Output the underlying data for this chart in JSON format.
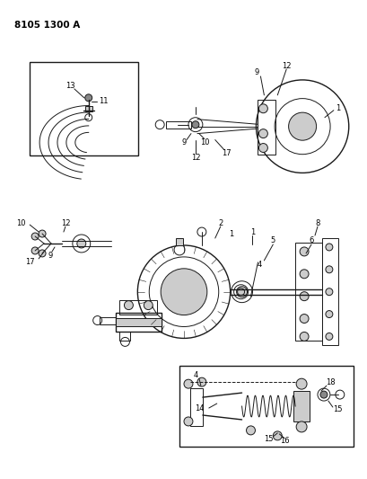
{
  "title": "8105 1300 A",
  "bg_color": "#ffffff",
  "line_color": "#1a1a1a",
  "text_color": "#000000",
  "figsize": [
    4.1,
    5.33
  ],
  "dpi": 100,
  "gray_fill": "#888888",
  "light_gray": "#cccccc",
  "dark_gray": "#555555",
  "label_fs": 6.0,
  "title_fs": 7.5
}
